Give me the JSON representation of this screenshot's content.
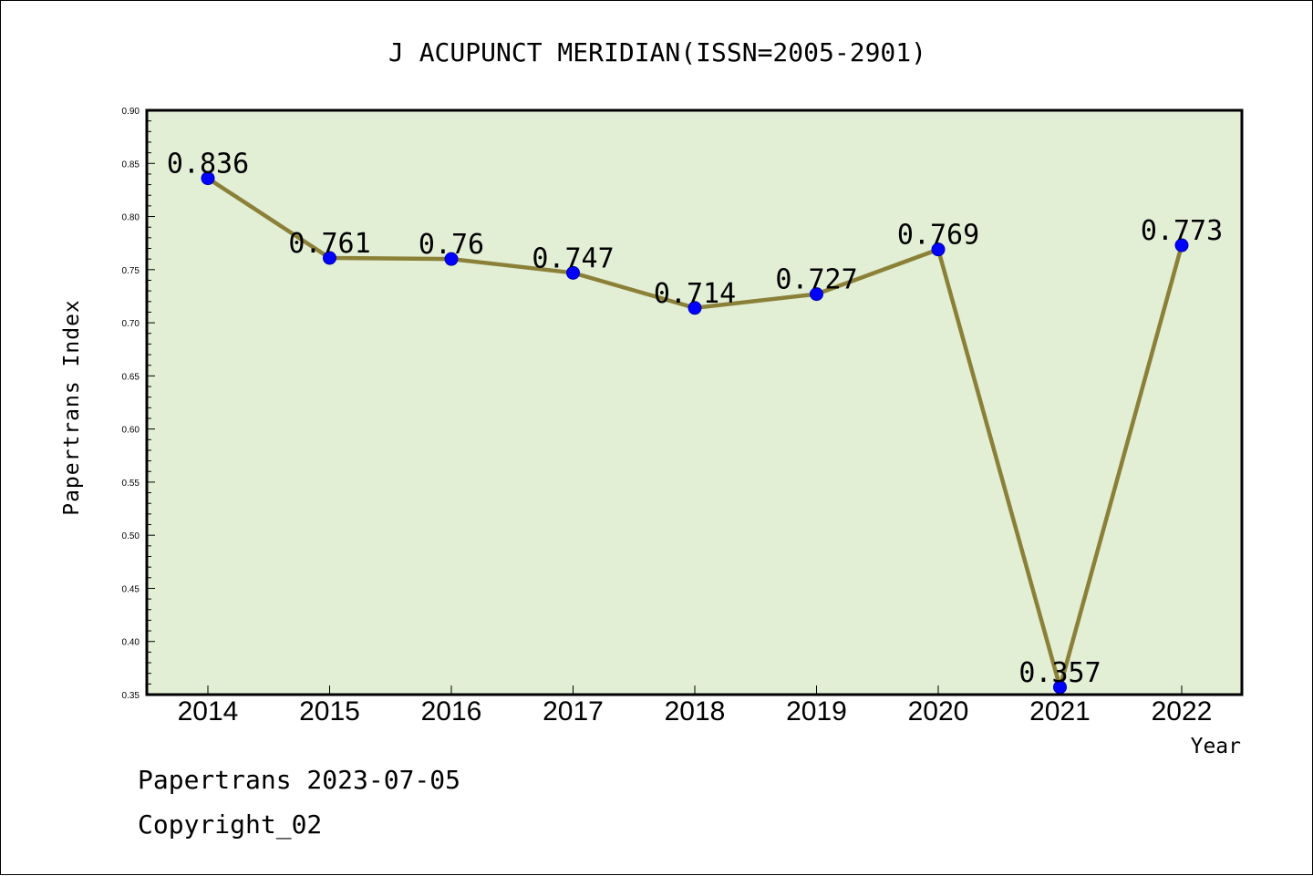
{
  "chart_data": {
    "type": "line",
    "title": "J ACUPUNCT MERIDIAN(ISSN=2005-2901)",
    "xlabel": "Year",
    "ylabel": "Papertrans Index",
    "categories": [
      "2014",
      "2015",
      "2016",
      "2017",
      "2018",
      "2019",
      "2020",
      "2021",
      "2022"
    ],
    "values": [
      0.836,
      0.761,
      0.76,
      0.747,
      0.714,
      0.727,
      0.769,
      0.357,
      0.773
    ],
    "value_labels": [
      "0.836",
      "0.761",
      "0.76",
      "0.747",
      "0.714",
      "0.727",
      "0.769",
      "0.357",
      "0.773"
    ],
    "ylim": [
      0.35,
      0.9
    ],
    "yticks": [
      "0.35",
      "0.40",
      "0.45",
      "0.50",
      "0.55",
      "0.60",
      "0.65",
      "0.70",
      "0.75",
      "0.80",
      "0.85",
      "0.90"
    ],
    "grid": false,
    "colors": {
      "plot_background": "#e2efd5",
      "line": "#8b8038",
      "marker": "#0000ff"
    }
  },
  "footer": {
    "line1": "Papertrans 2023-07-05",
    "line2": "Copyright_02"
  }
}
